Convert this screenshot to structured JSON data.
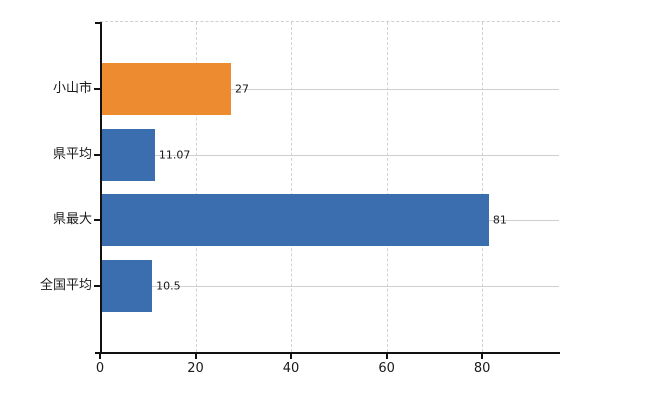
{
  "chart_data": {
    "type": "bar",
    "orientation": "horizontal",
    "title": "",
    "xlabel": "",
    "ylabel": "",
    "categories": [
      "小山市",
      "県平均",
      "県最大",
      "全国平均"
    ],
    "values": [
      27,
      11.07,
      81,
      10.5
    ],
    "value_labels": [
      "27",
      "11.07",
      "81",
      "10.5"
    ],
    "bar_colors": [
      "#ec8b2f",
      "#3b6eae",
      "#3b6eae",
      "#3b6eae"
    ],
    "x_ticks": [
      0,
      20,
      40,
      60,
      80
    ],
    "x_tick_labels": [
      "0",
      "20",
      "40",
      "60",
      "80"
    ],
    "xlim": [
      0,
      96.3
    ],
    "grid": true,
    "legend": false
  },
  "colors": {
    "background": "#ffffff",
    "axis": "#111111",
    "gridline": "#d2d2d2",
    "text": "#1a1a1a",
    "bar_blue": "#3b6eae",
    "bar_orange": "#ec8b2f"
  }
}
